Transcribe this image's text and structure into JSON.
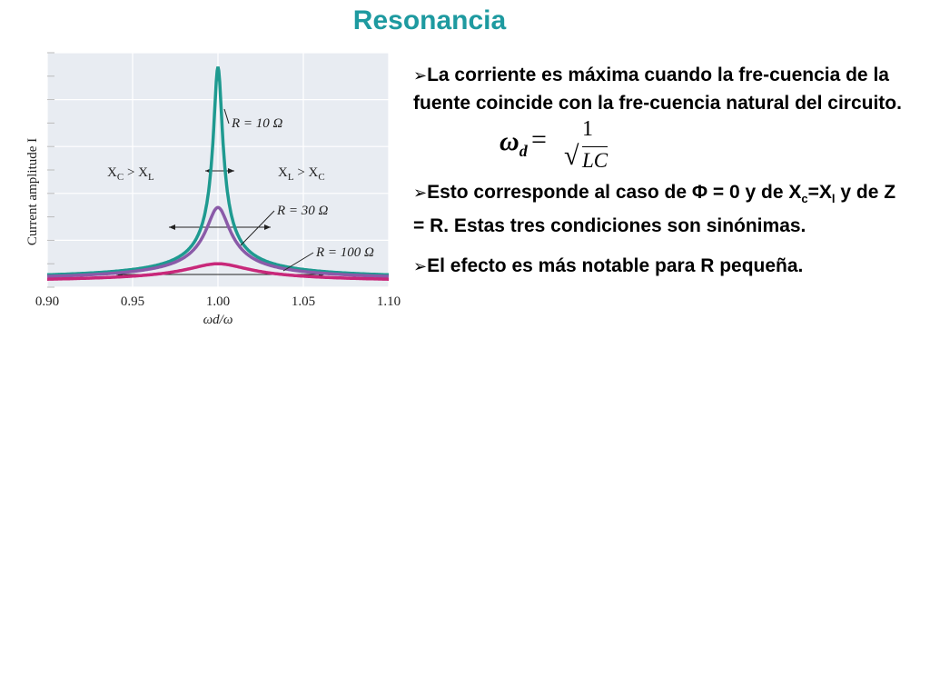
{
  "slide": {
    "title": "Resonancia"
  },
  "bullets": [
    {
      "text": "La corriente es máxima cuando la fre-cuencia de la fuente coincide con la fre-cuencia natural del circuito."
    },
    {
      "parts": [
        "Esto corresponde al caso de Φ = 0 y de X",
        "c",
        "=X",
        "l",
        " y de Z = R.  Estas tres condiciones son sinónimas."
      ]
    },
    {
      "text": "El efecto es más notable para R pequeña."
    }
  ],
  "bullet_marker": "➢",
  "formula": {
    "lhs": "ω",
    "lhs_sub": "d",
    "equals": "=",
    "numerator": "1",
    "denominator": "LC"
  },
  "chart_data": {
    "type": "line",
    "ylabel": "Current amplitude I",
    "xlabel": "ωd/ω",
    "x_ticks": [
      "0.90",
      "0.95",
      "1.00",
      "1.05",
      "1.10"
    ],
    "xlim": [
      0.9,
      1.1
    ],
    "ylim": [
      0,
      1.0
    ],
    "grid": true,
    "series": [
      {
        "name": "R = 10 Ω",
        "resistance": 10,
        "color": "#1e9a90",
        "peak": 0.94
      },
      {
        "name": "R = 30 Ω",
        "resistance": 30,
        "color": "#8a5aa8",
        "peak": 0.34
      },
      {
        "name": "R = 100 Ω",
        "resistance": 100,
        "color": "#c8287a",
        "peak": 0.1
      }
    ],
    "annotations": [
      {
        "text": "XC > XL",
        "parts": [
          "X",
          "C",
          " > X",
          "L"
        ]
      },
      {
        "text": "XL > XC",
        "parts": [
          "X",
          "L",
          " > X",
          "C"
        ]
      }
    ]
  }
}
